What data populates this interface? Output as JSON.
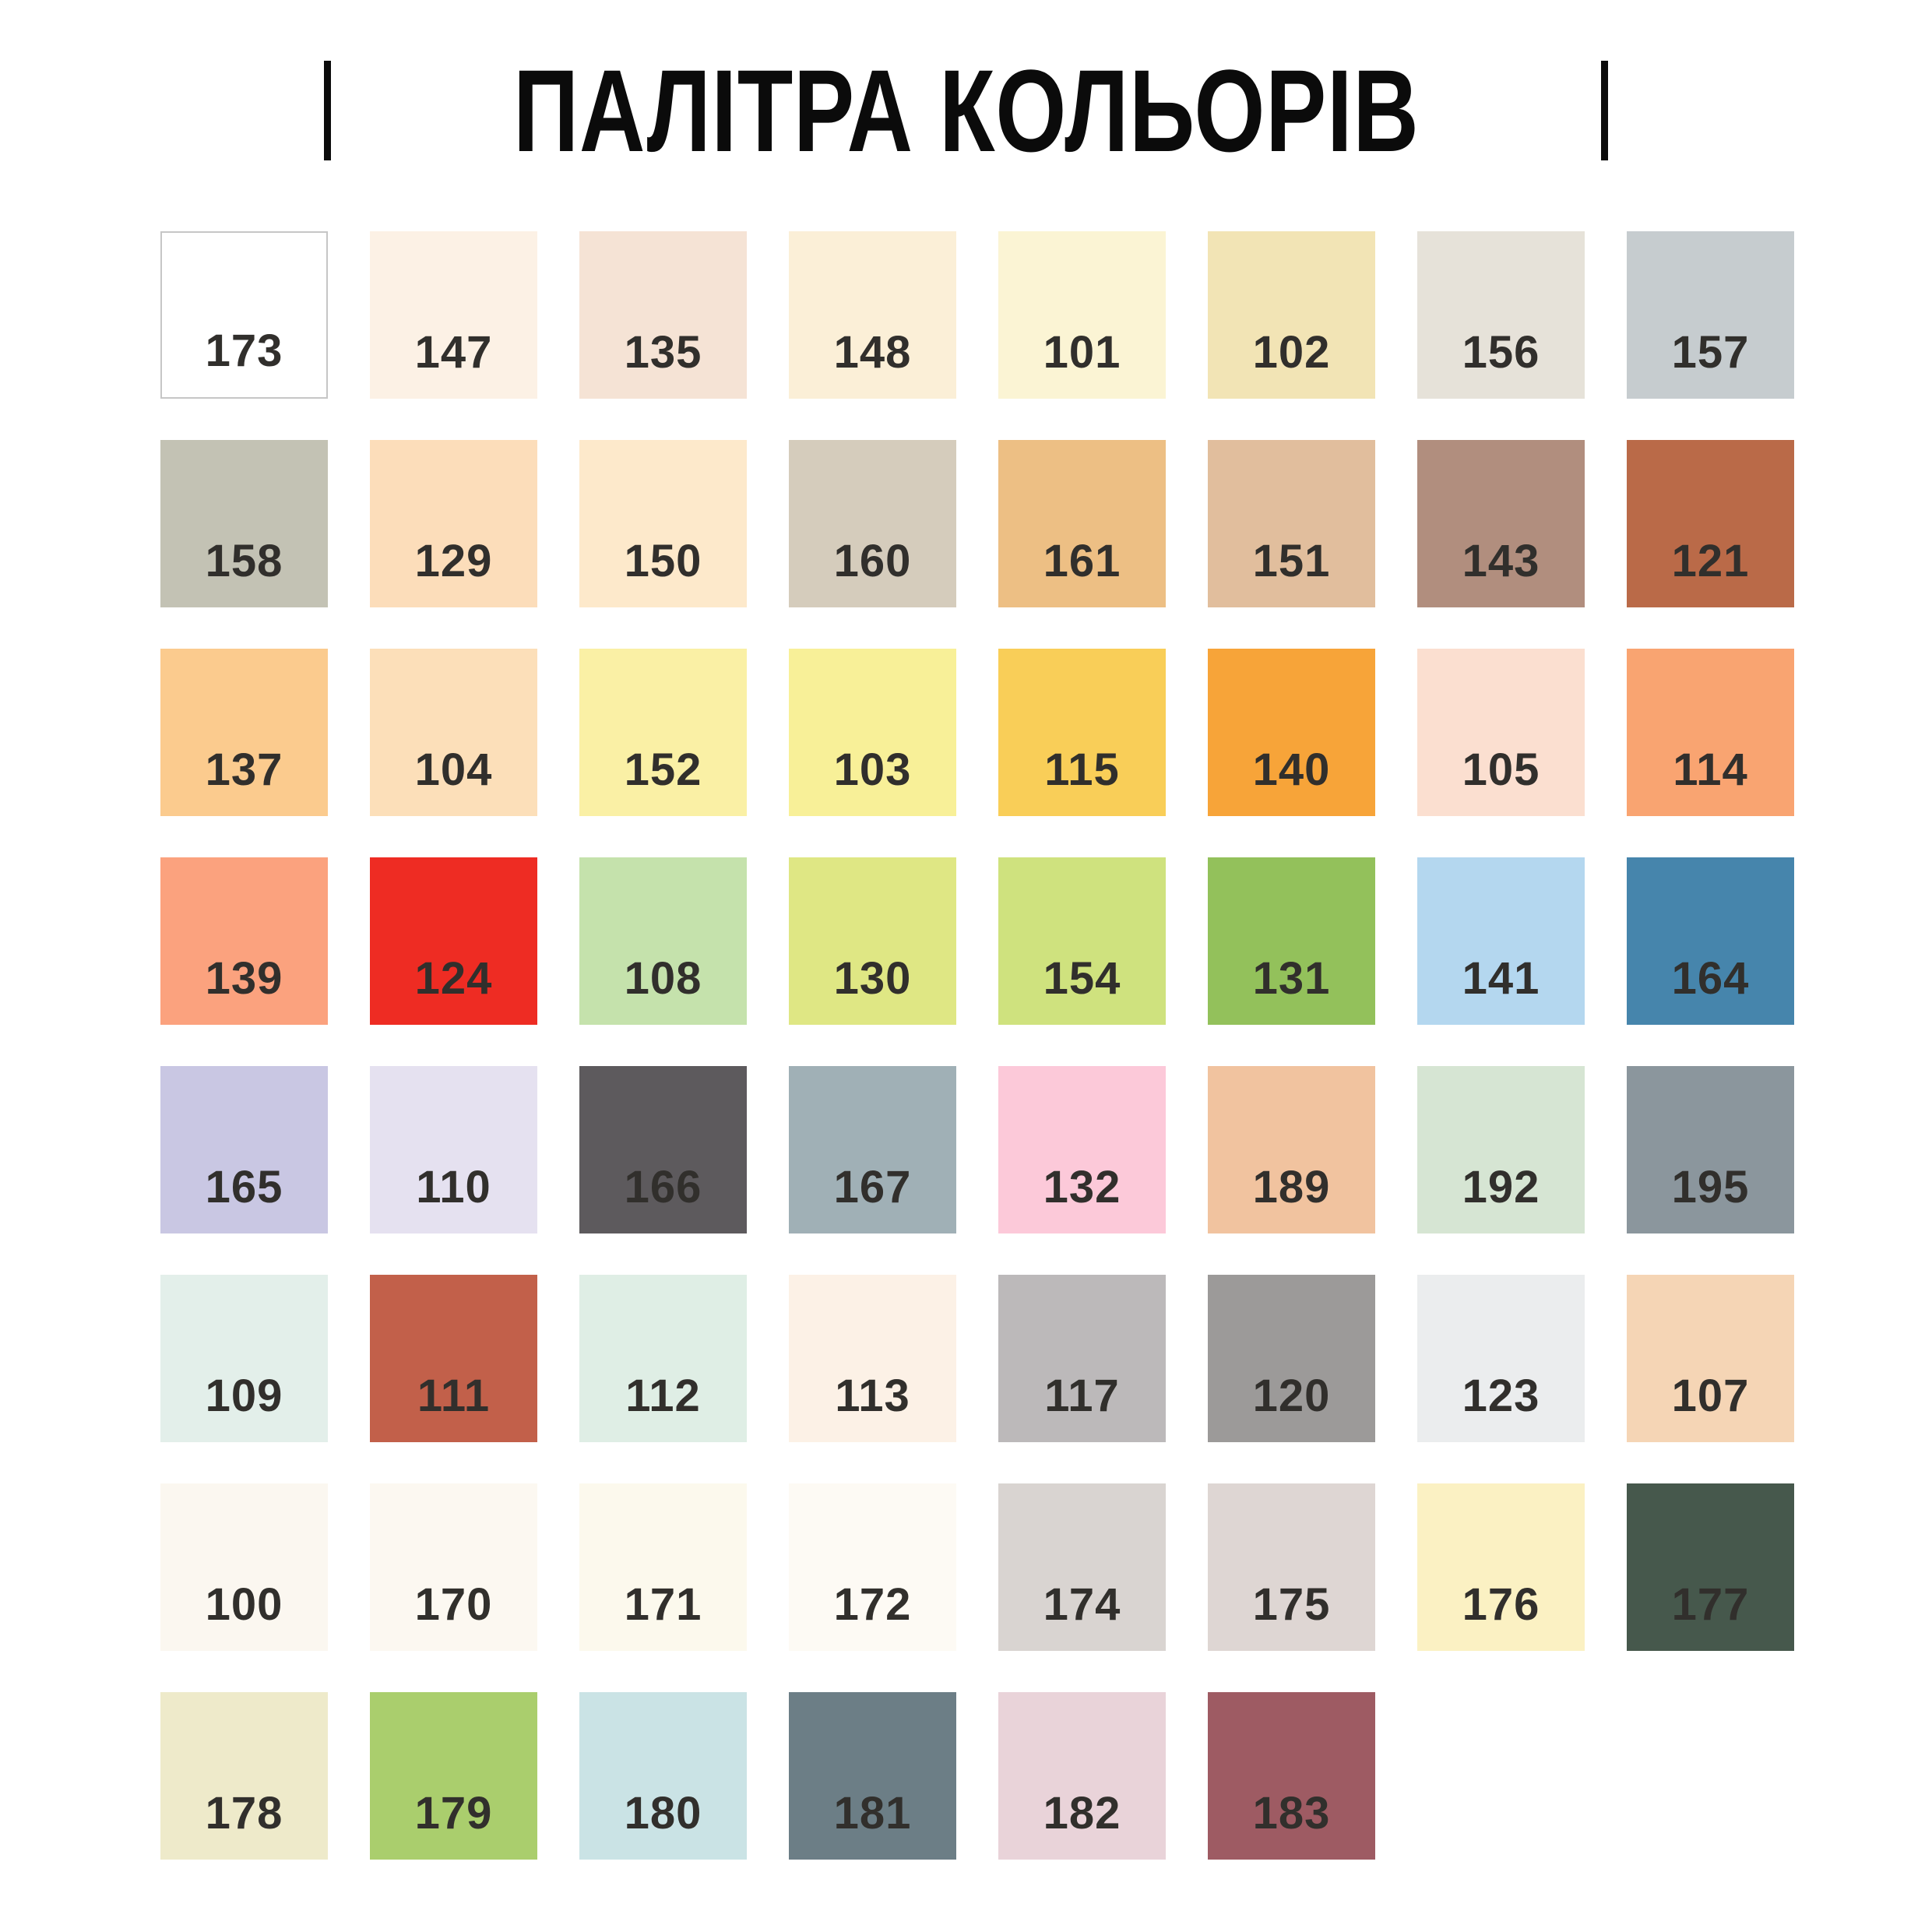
{
  "title": "ПАЛІТРА КОЛЬОРІВ",
  "colors": {
    "background": "#FFFFFF",
    "title_text": "#0B0B0B",
    "swatch_label_text": "#312F2C",
    "white_swatch_border": "#C6C6C6"
  },
  "chart_data": {
    "type": "table",
    "title": "ПАЛІТРА КОЛЬОРІВ",
    "columns": 8,
    "rows": 8,
    "legend_position": "none",
    "swatches": [
      {
        "code": "173",
        "hex": "#FFFFFF",
        "border": true
      },
      {
        "code": "147",
        "hex": "#FCF1E5",
        "border": false
      },
      {
        "code": "135",
        "hex": "#F5E3D5",
        "border": false
      },
      {
        "code": "148",
        "hex": "#FBEFD7",
        "border": false
      },
      {
        "code": "101",
        "hex": "#FBF4D4",
        "border": false
      },
      {
        "code": "102",
        "hex": "#F2E4B5",
        "border": false
      },
      {
        "code": "156",
        "hex": "#E6E2D9",
        "border": false
      },
      {
        "code": "157",
        "hex": "#C6CCCF",
        "border": false
      },
      {
        "code": "158",
        "hex": "#C3C2B4",
        "border": false
      },
      {
        "code": "129",
        "hex": "#FCDDBA",
        "border": false
      },
      {
        "code": "150",
        "hex": "#FDE9CB",
        "border": false
      },
      {
        "code": "160",
        "hex": "#D5CCBC",
        "border": false
      },
      {
        "code": "161",
        "hex": "#EDBF84",
        "border": false
      },
      {
        "code": "151",
        "hex": "#E1BE9D",
        "border": false
      },
      {
        "code": "143",
        "hex": "#B18E7E",
        "border": false
      },
      {
        "code": "121",
        "hex": "#BA6A48",
        "border": false
      },
      {
        "code": "137",
        "hex": "#FBCB8E",
        "border": false
      },
      {
        "code": "104",
        "hex": "#FCDFB9",
        "border": false
      },
      {
        "code": "152",
        "hex": "#FAF0A5",
        "border": false
      },
      {
        "code": "103",
        "hex": "#F8F098",
        "border": false
      },
      {
        "code": "115",
        "hex": "#F9CE58",
        "border": false
      },
      {
        "code": "140",
        "hex": "#F7A439",
        "border": false
      },
      {
        "code": "105",
        "hex": "#FBDFD0",
        "border": false
      },
      {
        "code": "114",
        "hex": "#F9A471",
        "border": false
      },
      {
        "code": "139",
        "hex": "#FBA27E",
        "border": false
      },
      {
        "code": "124",
        "hex": "#EE2C23",
        "border": false
      },
      {
        "code": "108",
        "hex": "#C5E2AC",
        "border": false
      },
      {
        "code": "130",
        "hex": "#DFE784",
        "border": false
      },
      {
        "code": "154",
        "hex": "#CFE27E",
        "border": false
      },
      {
        "code": "131",
        "hex": "#93C15B",
        "border": false
      },
      {
        "code": "141",
        "hex": "#B4D7EF",
        "border": false
      },
      {
        "code": "164",
        "hex": "#4685AC",
        "border": false
      },
      {
        "code": "165",
        "hex": "#C9C7E3",
        "border": false
      },
      {
        "code": "110",
        "hex": "#E5E1F0",
        "border": false
      },
      {
        "code": "166",
        "hex": "#5D5A5D",
        "border": false
      },
      {
        "code": "167",
        "hex": "#A0B0B6",
        "border": false
      },
      {
        "code": "132",
        "hex": "#FCC9D9",
        "border": false
      },
      {
        "code": "189",
        "hex": "#F1C39F",
        "border": false
      },
      {
        "code": "192",
        "hex": "#D6E5D3",
        "border": false
      },
      {
        "code": "195",
        "hex": "#8B969D",
        "border": false
      },
      {
        "code": "109",
        "hex": "#E3EFEA",
        "border": false
      },
      {
        "code": "111",
        "hex": "#C2604A",
        "border": false
      },
      {
        "code": "112",
        "hex": "#DFEEE5",
        "border": false
      },
      {
        "code": "113",
        "hex": "#FCF1E6",
        "border": false
      },
      {
        "code": "117",
        "hex": "#BCB9BA",
        "border": false
      },
      {
        "code": "120",
        "hex": "#9C9A99",
        "border": false
      },
      {
        "code": "123",
        "hex": "#EBEDEE",
        "border": false
      },
      {
        "code": "107",
        "hex": "#F5D5B5",
        "border": false
      },
      {
        "code": "100",
        "hex": "#FBF7F0",
        "border": false
      },
      {
        "code": "170",
        "hex": "#FCF8F1",
        "border": false
      },
      {
        "code": "171",
        "hex": "#FCF9ED",
        "border": false
      },
      {
        "code": "172",
        "hex": "#FDFAF4",
        "border": false
      },
      {
        "code": "174",
        "hex": "#D9D4D1",
        "border": false
      },
      {
        "code": "175",
        "hex": "#DED6D3",
        "border": false
      },
      {
        "code": "176",
        "hex": "#FBF1C3",
        "border": false
      },
      {
        "code": "177",
        "hex": "#46584C",
        "border": false
      },
      {
        "code": "178",
        "hex": "#EEEACA",
        "border": false
      },
      {
        "code": "179",
        "hex": "#AACE6D",
        "border": false
      },
      {
        "code": "180",
        "hex": "#CAE3E5",
        "border": false
      },
      {
        "code": "181",
        "hex": "#6C7E86",
        "border": false
      },
      {
        "code": "182",
        "hex": "#E9D3D9",
        "border": false
      },
      {
        "code": "183",
        "hex": "#9E5B63",
        "border": false
      }
    ]
  }
}
